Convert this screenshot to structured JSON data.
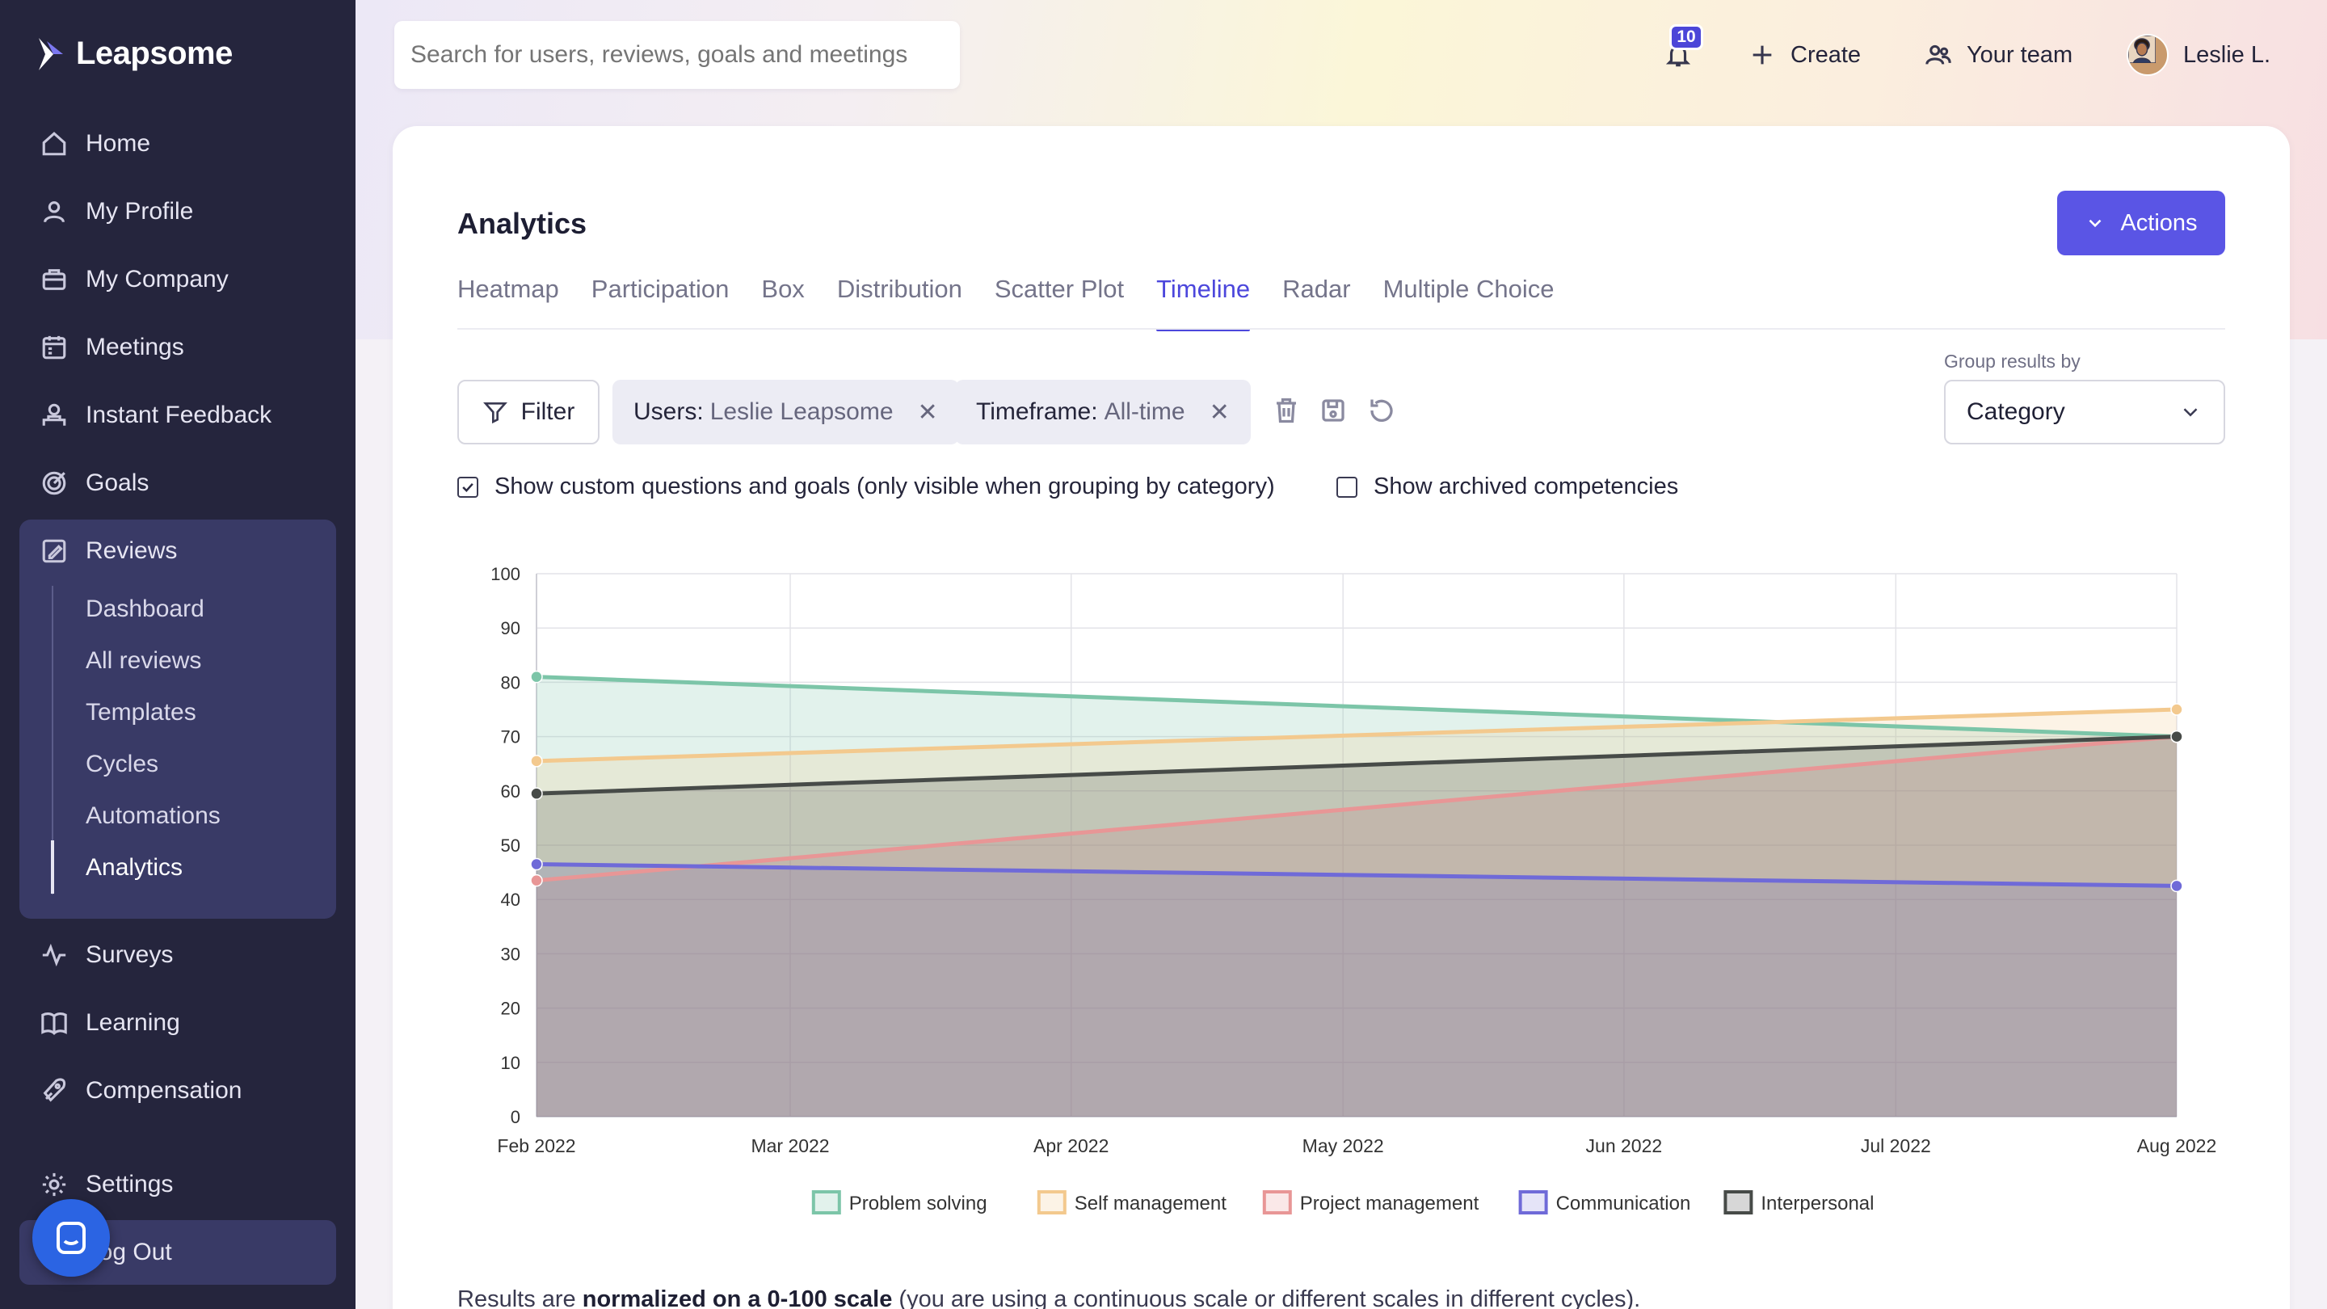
{
  "app": {
    "name": "Leapsome"
  },
  "search": {
    "placeholder": "Search for users, reviews, goals and meetings"
  },
  "topbar": {
    "notifications_count": "10",
    "create_label": "Create",
    "team_label": "Your team",
    "user_name": "Leslie L."
  },
  "sidebar": {
    "items": [
      {
        "label": "Home",
        "icon": "home-icon"
      },
      {
        "label": "My Profile",
        "icon": "user-icon"
      },
      {
        "label": "My Company",
        "icon": "company-icon"
      },
      {
        "label": "Meetings",
        "icon": "meetings-icon"
      },
      {
        "label": "Instant Feedback",
        "icon": "feedback-icon"
      },
      {
        "label": "Goals",
        "icon": "goals-icon"
      },
      {
        "label": "Reviews",
        "icon": "reviews-icon"
      },
      {
        "label": "Surveys",
        "icon": "surveys-icon"
      },
      {
        "label": "Learning",
        "icon": "learning-icon"
      },
      {
        "label": "Compensation",
        "icon": "compensation-icon"
      },
      {
        "label": "Settings",
        "icon": "settings-icon"
      },
      {
        "label": "Log Out",
        "icon": "logout-icon"
      }
    ],
    "reviews_sub": [
      "Dashboard",
      "All reviews",
      "Templates",
      "Cycles",
      "Automations",
      "Analytics"
    ],
    "active_sub": "Analytics"
  },
  "page": {
    "title": "Analytics",
    "actions_label": "Actions",
    "tabs": [
      "Heatmap",
      "Participation",
      "Box",
      "Distribution",
      "Scatter Plot",
      "Timeline",
      "Radar",
      "Multiple Choice"
    ],
    "active_tab": "Timeline"
  },
  "filters": {
    "filter_label": "Filter",
    "users_key": "Users:",
    "users_val": "Leslie Leapsome",
    "timeframe_key": "Timeframe:",
    "timeframe_val": "All-time",
    "group_label": "Group results by",
    "group_value": "Category",
    "show_custom_label": "Show custom questions and goals (only visible when grouping by category)",
    "show_custom_checked": true,
    "show_archived_label": "Show archived competencies",
    "show_archived_checked": false
  },
  "chart_data": {
    "type": "area",
    "x": [
      "Feb 2022",
      "Mar 2022",
      "Apr 2022",
      "May 2022",
      "Jun 2022",
      "Jul 2022",
      "Aug 2022"
    ],
    "ylim": [
      0,
      100
    ],
    "yticks": [
      0,
      10,
      20,
      30,
      40,
      50,
      60,
      70,
      80,
      90,
      100
    ],
    "grid": true,
    "legend_position": "bottom",
    "series": [
      {
        "name": "Problem solving",
        "color": "#7cc5a8",
        "values": [
          81,
          null,
          null,
          null,
          null,
          null,
          70
        ]
      },
      {
        "name": "Self management",
        "color": "#f3c98e",
        "values": [
          65.5,
          null,
          null,
          null,
          null,
          null,
          75
        ]
      },
      {
        "name": "Project management",
        "color": "#e89696",
        "values": [
          43.5,
          null,
          null,
          null,
          null,
          null,
          70
        ]
      },
      {
        "name": "Communication",
        "color": "#6f6ad8",
        "values": [
          46.5,
          null,
          null,
          null,
          null,
          null,
          42.5
        ]
      },
      {
        "name": "Interpersonal",
        "color": "#474b48",
        "values": [
          59.5,
          null,
          null,
          null,
          null,
          null,
          70
        ]
      }
    ]
  },
  "footer": {
    "pre": "Results are ",
    "bold": "normalized on a 0-100 scale",
    "post": " (you are using a continuous scale or different scales in different cycles)."
  }
}
